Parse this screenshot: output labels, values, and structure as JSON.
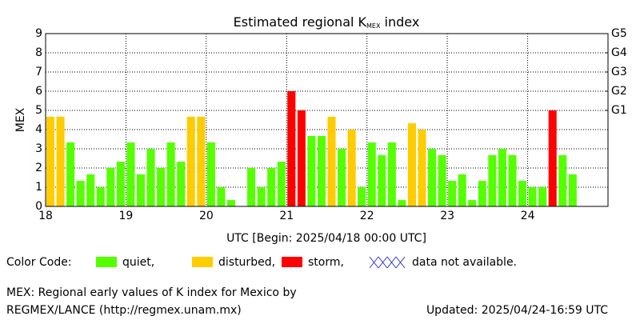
{
  "chart_data": {
    "type": "bar",
    "title": "Estimated regional K",
    "title_subscript": "MEX",
    "title_suffix": " index",
    "ylabel": "MEX",
    "xlabel": "UTC [Begin: 2025/04/18 00:00 UTC]",
    "xlim": [
      18,
      25
    ],
    "xticks": [
      18,
      19,
      20,
      21,
      22,
      23,
      24
    ],
    "ylim": [
      0,
      9
    ],
    "yticks": [
      0,
      1,
      2,
      3,
      4,
      5,
      6,
      7,
      8,
      9
    ],
    "y2lim": [
      0,
      9
    ],
    "y2ticks": [
      {
        "value": 5,
        "label": "G1"
      },
      {
        "value": 6,
        "label": "G2"
      },
      {
        "value": 7,
        "label": "G3"
      },
      {
        "value": 8,
        "label": "G4"
      },
      {
        "value": 9,
        "label": "G5"
      }
    ],
    "grid": true,
    "x": [
      18,
      18.125,
      18.25,
      18.375,
      18.5,
      18.625,
      18.75,
      18.875,
      19,
      19.125,
      19.25,
      19.375,
      19.5,
      19.625,
      19.75,
      19.875,
      20,
      20.125,
      20.25,
      20.375,
      20.5,
      20.625,
      20.75,
      20.875,
      21,
      21.125,
      21.25,
      21.375,
      21.5,
      21.625,
      21.75,
      21.875,
      22,
      22.125,
      22.25,
      22.375,
      22.5,
      22.625,
      22.75,
      22.875,
      23,
      23.125,
      23.25,
      23.375,
      23.5,
      23.625,
      23.75,
      23.875,
      24,
      24.125,
      24.25,
      24.375,
      24.5
    ],
    "series": [
      {
        "name": "quiet,",
        "color": "#55ff00",
        "values": [
          null,
          null,
          3.33,
          1.33,
          1.67,
          1,
          2,
          2.33,
          3.33,
          1.67,
          3,
          2,
          3.33,
          2.33,
          null,
          null,
          3.33,
          1,
          0.33,
          0,
          2,
          1,
          2,
          2.33,
          null,
          null,
          3.67,
          3.67,
          null,
          3,
          null,
          1,
          3.33,
          2.67,
          3.33,
          0.33,
          null,
          null,
          3,
          2.67,
          1.33,
          1.67,
          0.33,
          1.33,
          2.67,
          3,
          2.67,
          1.33,
          1,
          1,
          null,
          2.67,
          1.67
        ]
      },
      {
        "name": "disturbed,",
        "color": "#ffcc00",
        "values": [
          4.67,
          4.67,
          null,
          null,
          null,
          null,
          null,
          null,
          null,
          null,
          null,
          null,
          null,
          null,
          4.67,
          4.67,
          null,
          null,
          null,
          null,
          null,
          null,
          null,
          null,
          null,
          null,
          null,
          null,
          4.67,
          null,
          4,
          null,
          null,
          null,
          null,
          null,
          4.33,
          4,
          null,
          null,
          null,
          null,
          null,
          null,
          null,
          null,
          null,
          null,
          null,
          null,
          null,
          null,
          null
        ]
      },
      {
        "name": "storm,",
        "color": "#ff0000",
        "values": [
          null,
          null,
          null,
          null,
          null,
          null,
          null,
          null,
          null,
          null,
          null,
          null,
          null,
          null,
          null,
          null,
          null,
          null,
          null,
          null,
          null,
          null,
          null,
          null,
          6,
          5,
          null,
          null,
          null,
          null,
          null,
          null,
          null,
          null,
          null,
          null,
          null,
          null,
          null,
          null,
          null,
          null,
          null,
          null,
          null,
          null,
          null,
          null,
          null,
          null,
          5,
          null,
          null
        ]
      }
    ],
    "legend_title": "Color Code:",
    "missing_label": "data not available.",
    "footer_line1": "MEX: Regional early values of K index for Mexico by",
    "footer_line2": "REGMEX/LANCE (http://regmex.unam.mx)",
    "updated": "Updated: 2025/04/24-16:59 UTC"
  }
}
